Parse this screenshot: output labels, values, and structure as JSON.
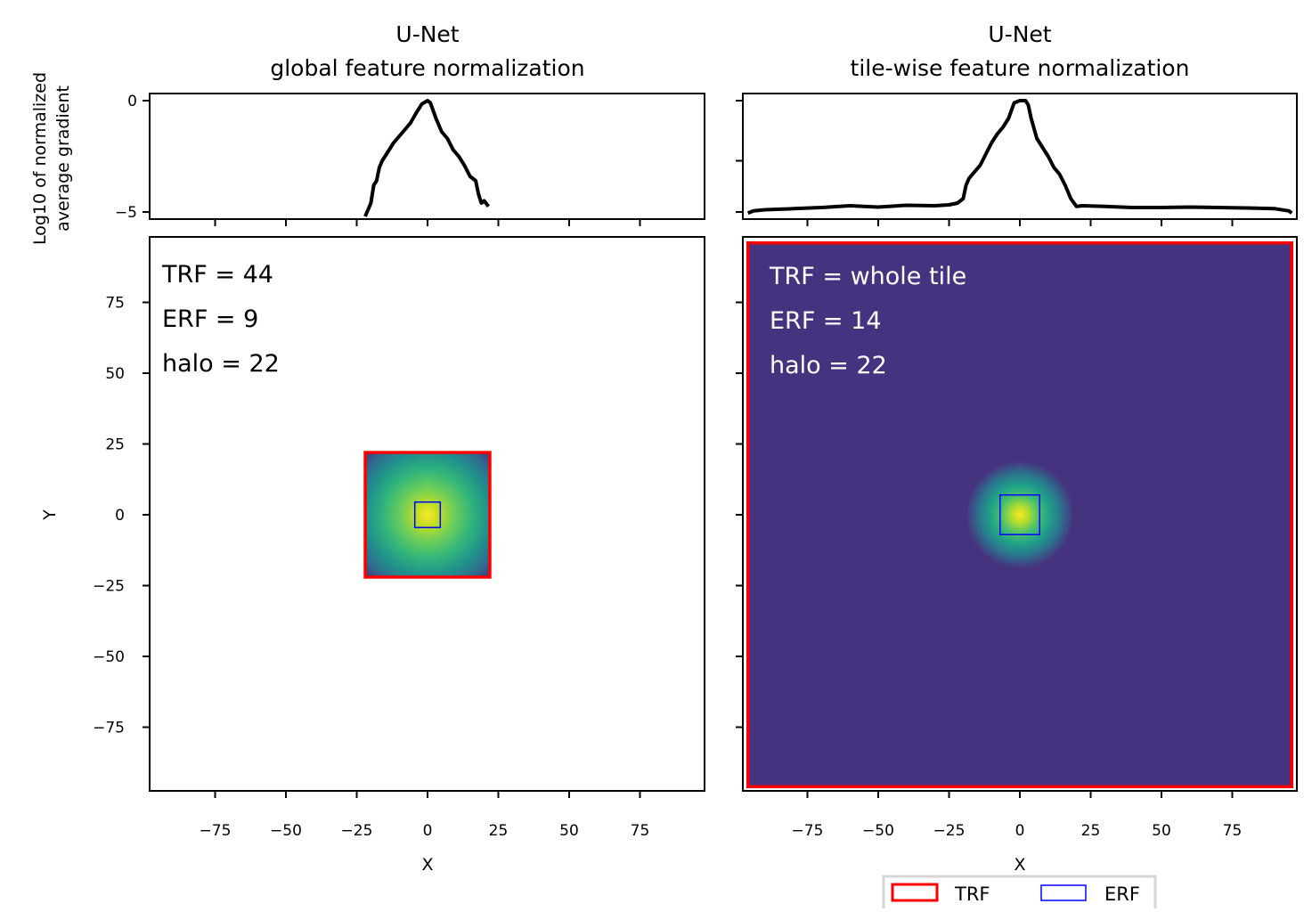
{
  "chart_data": [
    {
      "type": "line",
      "panel": "top-left",
      "title": [
        "U-Net",
        "global feature normalization"
      ],
      "ylabel": [
        "Log10 of normalized",
        "average gradient"
      ],
      "xlim": [
        -98,
        98
      ],
      "ylim": [
        -5.32,
        0.32
      ],
      "yticks": [
        0,
        -5
      ],
      "ytick_labels": [
        "0",
        "−5"
      ],
      "x": [
        -22,
        -20,
        -19,
        -18,
        -17,
        -16,
        -14,
        -12,
        -10,
        -8,
        -6,
        -4,
        -2,
        0,
        1,
        3,
        5,
        7,
        9,
        11,
        13,
        15,
        17,
        18,
        19,
        20,
        21.5
      ],
      "y": [
        -5.2,
        -4.6,
        -3.8,
        -3.6,
        -3.0,
        -2.7,
        -2.3,
        -1.9,
        -1.6,
        -1.3,
        -1.0,
        -0.55,
        -0.15,
        0,
        -0.1,
        -0.8,
        -1.4,
        -1.7,
        -2.2,
        -2.5,
        -2.9,
        -3.4,
        -3.6,
        -4.2,
        -4.6,
        -4.5,
        -4.75
      ],
      "color": "#000000"
    },
    {
      "type": "line",
      "panel": "top-right",
      "title": [
        "U-Net",
        "tile-wise feature normalization"
      ],
      "xlim": [
        -98,
        98
      ],
      "ylim": [
        -5.32,
        0.32
      ],
      "yticks": [
        0,
        -2.7,
        -5
      ],
      "x": [
        -96,
        -94,
        -90,
        -80,
        -70,
        -60,
        -50,
        -40,
        -30,
        -25,
        -22,
        -20,
        -19,
        -18,
        -16,
        -14,
        -12,
        -10,
        -8,
        -6,
        -4,
        -2,
        0,
        2,
        3,
        4,
        6,
        8,
        10,
        12,
        14,
        16,
        18,
        20,
        22,
        30,
        40,
        50,
        60,
        70,
        80,
        90,
        95,
        96
      ],
      "y": [
        -5.05,
        -4.95,
        -4.9,
        -4.85,
        -4.8,
        -4.72,
        -4.78,
        -4.7,
        -4.72,
        -4.68,
        -4.6,
        -4.4,
        -3.8,
        -3.5,
        -3.2,
        -2.9,
        -2.4,
        -1.9,
        -1.5,
        -1.2,
        -0.8,
        -0.1,
        0,
        0,
        -0.2,
        -0.8,
        -1.7,
        -2.1,
        -2.5,
        -3.0,
        -3.3,
        -3.8,
        -4.4,
        -4.75,
        -4.72,
        -4.75,
        -4.8,
        -4.8,
        -4.78,
        -4.8,
        -4.82,
        -4.85,
        -4.95,
        -5.05
      ],
      "color": "#000000"
    },
    {
      "type": "heatmap",
      "panel": "bottom-left",
      "xlabel": "X",
      "ylabel": "Y",
      "xlim": [
        -98,
        98
      ],
      "ylim": [
        -98,
        98
      ],
      "xticks": [
        -75,
        -50,
        -25,
        0,
        25,
        50,
        75
      ],
      "xtick_labels": [
        "−75",
        "−50",
        "−25",
        "0",
        "25",
        "50",
        "75"
      ],
      "yticks": [
        75,
        50,
        25,
        0,
        -25,
        -50,
        -75
      ],
      "ytick_labels": [
        "75",
        "50",
        "25",
        "0",
        "−25",
        "−50",
        "−75"
      ],
      "colormap": "viridis",
      "nonzero_extent": [
        -22,
        22
      ],
      "trf_box": [
        -22,
        22
      ],
      "erf_box": [
        -4.5,
        4.5
      ],
      "annotations": [
        "TRF = 44",
        "ERF = 9",
        "halo = 22"
      ],
      "annotation_color": "#000000"
    },
    {
      "type": "heatmap",
      "panel": "bottom-right",
      "xlabel": "X",
      "xlim": [
        -98,
        98
      ],
      "ylim": [
        -98,
        98
      ],
      "xticks": [
        -75,
        -50,
        -25,
        0,
        25,
        50,
        75
      ],
      "xtick_labels": [
        "−75",
        "−50",
        "−25",
        "0",
        "25",
        "50",
        "75"
      ],
      "yticks": [
        75,
        50,
        25,
        0,
        -25,
        -50,
        -75
      ],
      "colormap": "viridis",
      "background_color": "#46337f",
      "trf_box": [
        -96,
        96
      ],
      "erf_box": [
        -7,
        7
      ],
      "annotations": [
        "TRF = whole tile",
        "ERF = 14",
        "halo = 22"
      ],
      "annotation_color": "#ffffff"
    }
  ],
  "legend": {
    "placement": "bottom",
    "entries": [
      {
        "label": "TRF",
        "color": "#ff0000"
      },
      {
        "label": "ERF",
        "color": "#0000ff"
      }
    ]
  }
}
